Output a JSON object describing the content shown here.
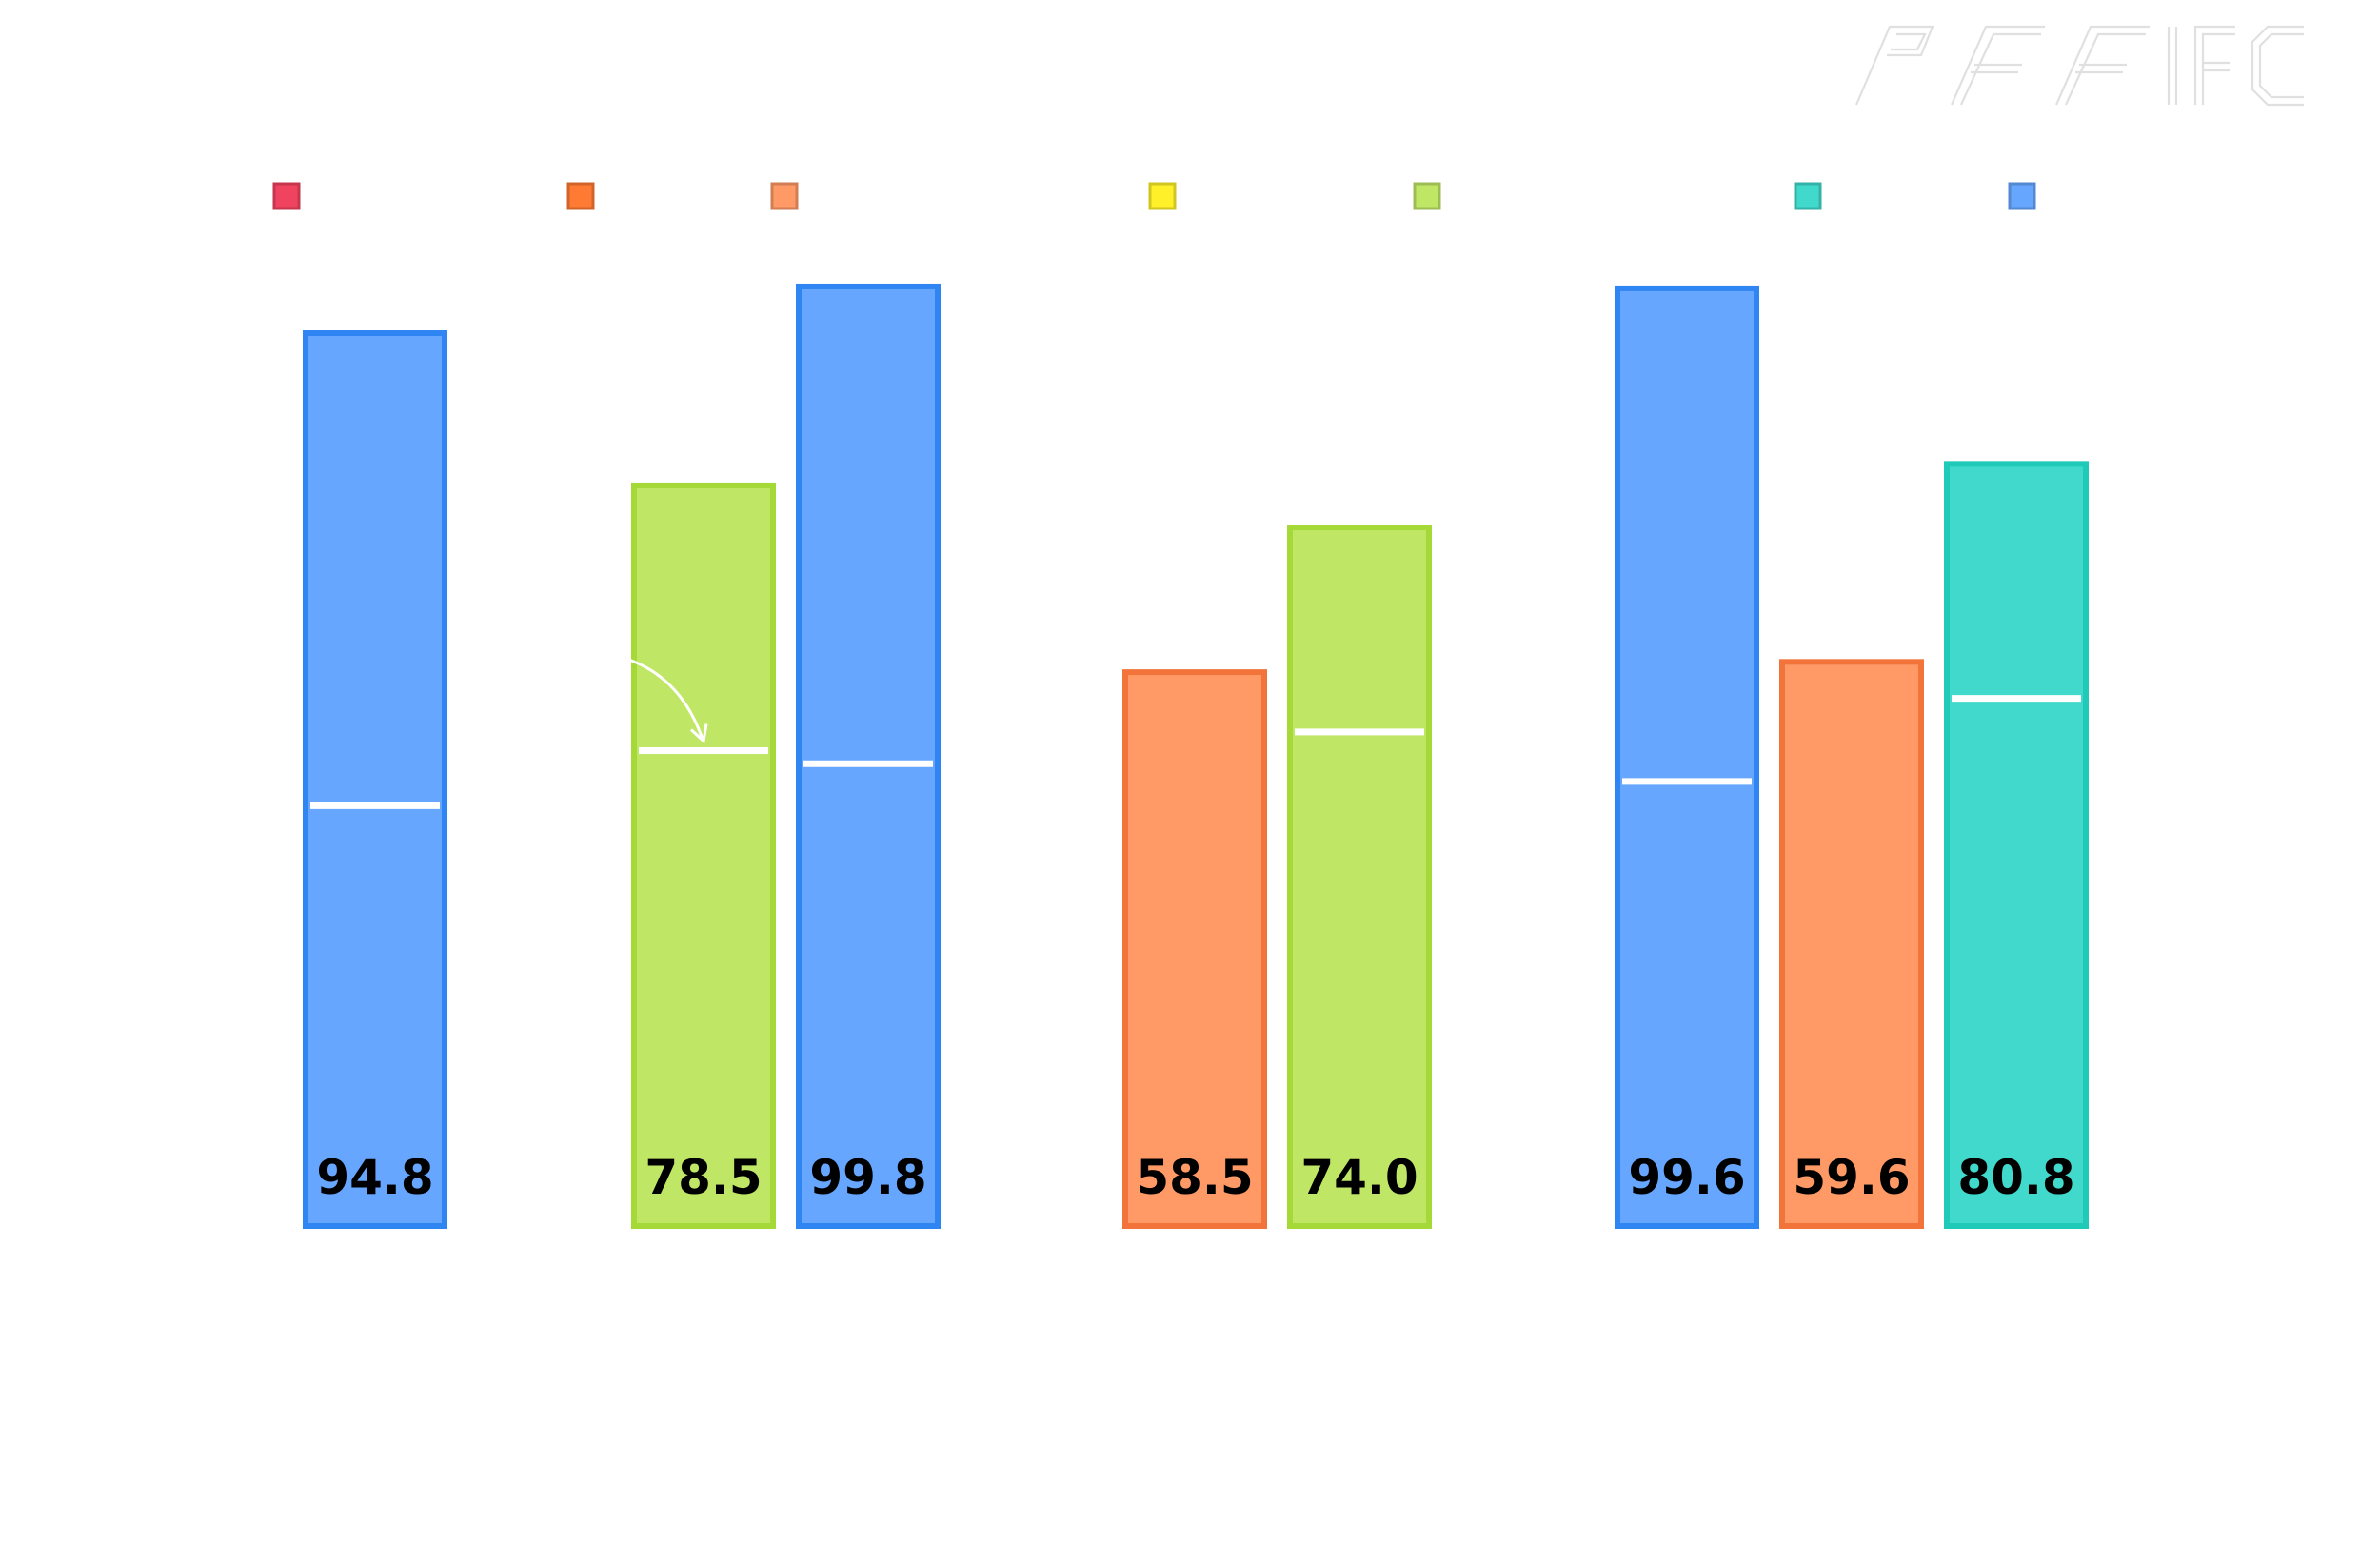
{
  "chart_data": {
    "type": "bar",
    "title": "",
    "xlabel": "",
    "ylabel": "",
    "ylim": [
      0,
      100
    ],
    "grid": false,
    "legend_placement": "top",
    "legend": [
      {
        "color": "#f0435f"
      },
      {
        "color": "#ff7a33"
      },
      {
        "color": "#ff9a66"
      },
      {
        "color": "#fff02a"
      },
      {
        "color": "#c0e666"
      },
      {
        "color": "#40d9cc"
      },
      {
        "color": "#66a6ff"
      }
    ],
    "groups": [
      {
        "bars": [
          {
            "value": 94.8,
            "label": "94.8",
            "fill": "#66a6ff",
            "edge": "#2f86f2",
            "marker": 44.2
          }
        ]
      },
      {
        "bars": [
          {
            "value": 78.5,
            "label": "78.5",
            "fill": "#c0e666",
            "edge": "#a4d938",
            "marker": 50.1,
            "arrow": true
          },
          {
            "value": 99.8,
            "label": "99.8",
            "fill": "#66a6ff",
            "edge": "#2f86f2",
            "marker": 48.7
          }
        ]
      },
      {
        "bars": [
          {
            "value": 58.5,
            "label": "58.5",
            "fill": "#ff9a66",
            "edge": "#f2743a"
          },
          {
            "value": 74.0,
            "label": "74.0",
            "fill": "#c0e666",
            "edge": "#a4d938",
            "marker": 52.1
          }
        ]
      },
      {
        "bars": [
          {
            "value": 99.6,
            "label": "99.6",
            "fill": "#66a6ff",
            "edge": "#2f86f2",
            "marker": 46.8
          },
          {
            "value": 59.6,
            "label": "59.6",
            "fill": "#ff9a66",
            "edge": "#f2743a"
          },
          {
            "value": 80.8,
            "label": "80.8",
            "fill": "#40d9cc",
            "edge": "#1fcab8",
            "marker": 55.7
          }
        ]
      }
    ]
  },
  "logo": {
    "text": "PFF FC",
    "color": "#e0e0e0"
  }
}
